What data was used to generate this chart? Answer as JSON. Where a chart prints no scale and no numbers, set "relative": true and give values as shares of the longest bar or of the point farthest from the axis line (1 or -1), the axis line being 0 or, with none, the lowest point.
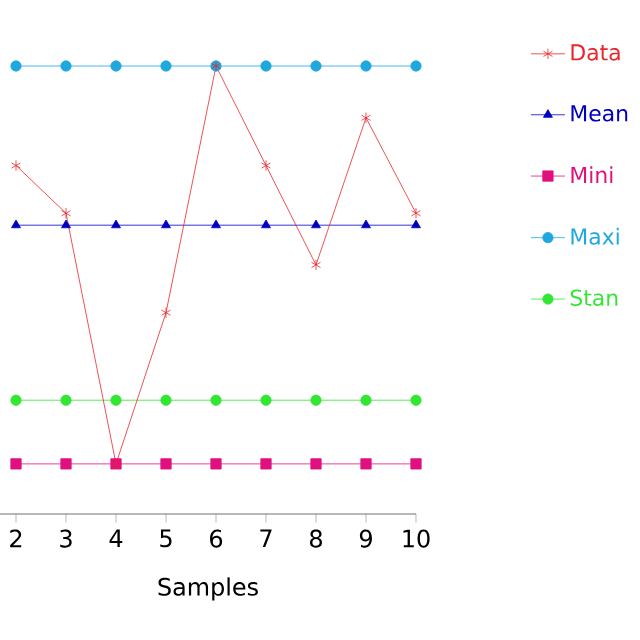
{
  "chart_data": {
    "type": "line",
    "relative": true,
    "xlabel": "Samples",
    "x": [
      2,
      3,
      4,
      5,
      6,
      7,
      8,
      9,
      10
    ],
    "xlim": [
      1.68,
      10
    ],
    "xticks": [
      2,
      3,
      4,
      5,
      6,
      7,
      8,
      9,
      10
    ],
    "legend": "right",
    "grid": false,
    "line_style": "solid",
    "series": [
      {
        "name": "Data",
        "color": "#e8262b",
        "marker": "cross",
        "values": [
          0.75,
          0.63,
          0,
          0.38,
          1,
          0.75,
          0.5,
          0.87,
          0.63
        ]
      },
      {
        "name": "Mean",
        "color": "#0000c0",
        "marker": "triangle",
        "values": [
          0.6,
          0.6,
          0.6,
          0.6,
          0.6,
          0.6,
          0.6,
          0.6,
          0.6
        ]
      },
      {
        "name": "Mini",
        "color": "#e0107f",
        "marker": "square",
        "values": [
          0,
          0,
          0,
          0,
          0,
          0,
          0,
          0,
          0
        ]
      },
      {
        "name": "Maxi",
        "color": "#1fa8de",
        "marker": "circle",
        "values": [
          1,
          1,
          1,
          1,
          1,
          1,
          1,
          1,
          1
        ]
      },
      {
        "name": "Stan",
        "color": "#33e633",
        "marker": "circle",
        "values": [
          0.16,
          0.16,
          0.16,
          0.16,
          0.16,
          0.16,
          0.16,
          0.16,
          0.16
        ]
      }
    ]
  }
}
